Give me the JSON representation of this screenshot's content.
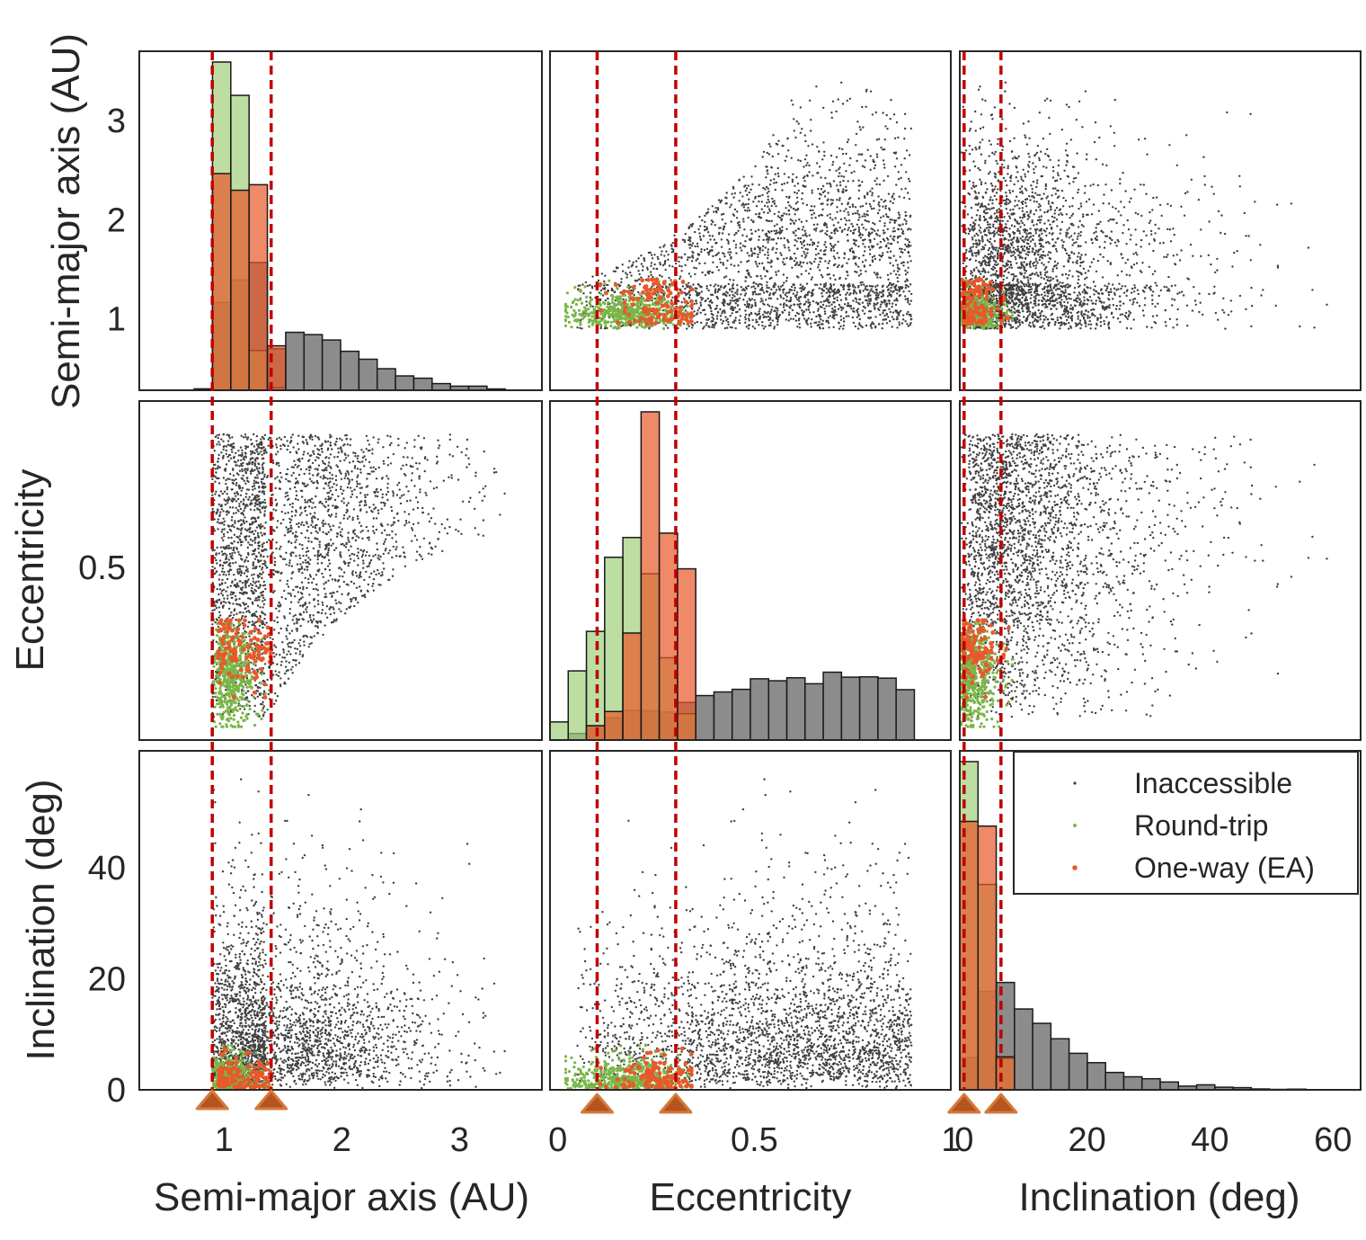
{
  "chart_data": {
    "type": "scatter",
    "variables": [
      {
        "key": "a",
        "label": "Semi-major axis (AU)",
        "lim": [
          0.28,
          3.7
        ],
        "xticks": [
          1,
          2,
          3
        ],
        "xtick_labels": [
          "1",
          "2",
          "3"
        ],
        "yticks": [
          1,
          2,
          3
        ],
        "ytick_labels": [
          "1",
          "2",
          "3"
        ]
      },
      {
        "key": "e",
        "label": "Eccentricity",
        "lim": [
          -0.02,
          1.0
        ],
        "xticks": [
          0,
          0.5,
          1
        ],
        "xtick_labels": [
          "0",
          "0.5",
          "1"
        ],
        "yticks": [
          0.5
        ],
        "ytick_labels": [
          "0.5"
        ]
      },
      {
        "key": "i",
        "label": "Inclination (deg)",
        "lim": [
          0,
          61
        ],
        "hist_lim": [
          -0.7,
          64.5
        ],
        "xticks": [
          0,
          20,
          40,
          60
        ],
        "xtick_labels": [
          "0",
          "20",
          "40",
          "60"
        ],
        "yticks": [
          0,
          20,
          40
        ],
        "ytick_labels": [
          "0",
          "20",
          "40"
        ]
      }
    ],
    "series": [
      {
        "name": "Inaccessible",
        "color": "#404040",
        "hist_color": "#8c8c8c"
      },
      {
        "name": "Round-trip",
        "color": "#7ab648",
        "hist_color": "#9fd07a"
      },
      {
        "name": "One-way (EA)",
        "color": "#e8582a",
        "hist_color": "#e8582a"
      }
    ],
    "thresholds": {
      "a": [
        0.9,
        1.4
      ],
      "e": [
        0.1,
        0.3
      ],
      "i": [
        0,
        6
      ]
    },
    "threshold_line_color": "#c00000",
    "marker_color": "#b5551d",
    "legend_position": "top-right",
    "grid": false
  }
}
